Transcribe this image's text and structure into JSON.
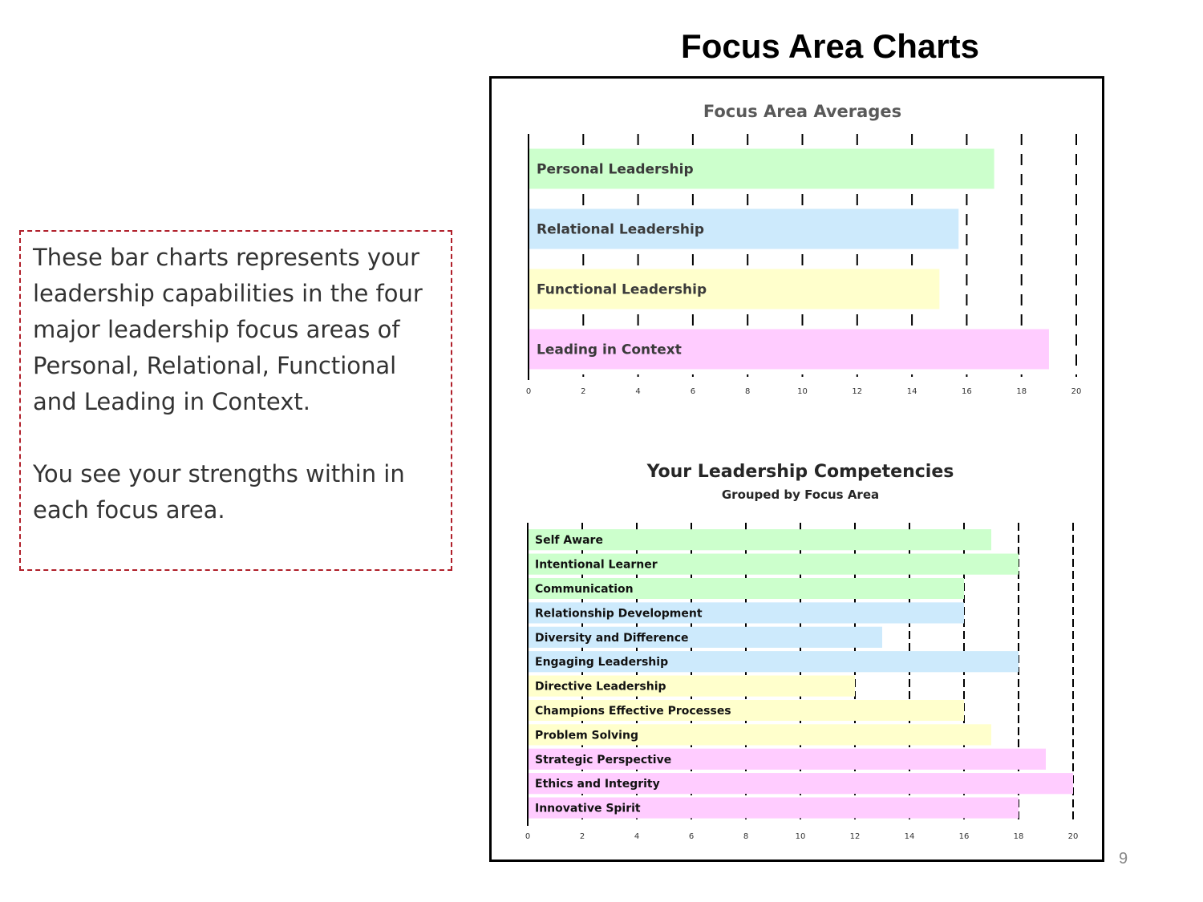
{
  "slide": {
    "title": "Focus Area Charts",
    "description_paragraphs": [
      "These bar charts represents your leadership capabilities in the four major leadership focus areas of Personal, Relational, Functional and Leading in Context.",
      "You see your strengths within in each focus area."
    ],
    "page_number": "9"
  },
  "colors": {
    "personal": "#ccffcc",
    "relational": "#cdeafc",
    "functional": "#ffffcc",
    "context": "#ffccff",
    "frame_border": "#000000",
    "textbox_border": "#b01f2a"
  },
  "chart_data": [
    {
      "type": "bar",
      "orientation": "horizontal",
      "title": "Focus Area Averages",
      "categories": [
        "Personal Leadership",
        "Relational Leadership",
        "Functional Leadership",
        "Leading in Context"
      ],
      "values": [
        17,
        15.7,
        15,
        19
      ],
      "color_keys": [
        "personal",
        "relational",
        "functional",
        "context"
      ],
      "xlim": [
        0,
        20
      ],
      "xticks": [
        0,
        2,
        4,
        6,
        8,
        10,
        12,
        14,
        16,
        18,
        20
      ],
      "grid": true,
      "labels_inside_bars": true
    },
    {
      "type": "bar",
      "orientation": "horizontal",
      "title": "Your Leadership Competencies",
      "subtitle": "Grouped by Focus Area",
      "categories": [
        "Self Aware",
        "Intentional Learner",
        "Communication",
        "Relationship Development",
        "Diversity and Difference",
        "Engaging Leadership",
        "Directive Leadership",
        "Champions Effective Processes",
        "Problem Solving",
        "Strategic Perspective",
        "Ethics and Integrity",
        "Innovative Spirit"
      ],
      "values": [
        17,
        18,
        16,
        16,
        13,
        18,
        12,
        16,
        17,
        19,
        20,
        18
      ],
      "color_keys": [
        "personal",
        "personal",
        "personal",
        "relational",
        "relational",
        "relational",
        "functional",
        "functional",
        "functional",
        "context",
        "context",
        "context"
      ],
      "xlim": [
        0,
        20
      ],
      "xticks": [
        0,
        2,
        4,
        6,
        8,
        10,
        12,
        14,
        16,
        18,
        20
      ],
      "grid": true,
      "labels_inside_bars": true
    }
  ]
}
